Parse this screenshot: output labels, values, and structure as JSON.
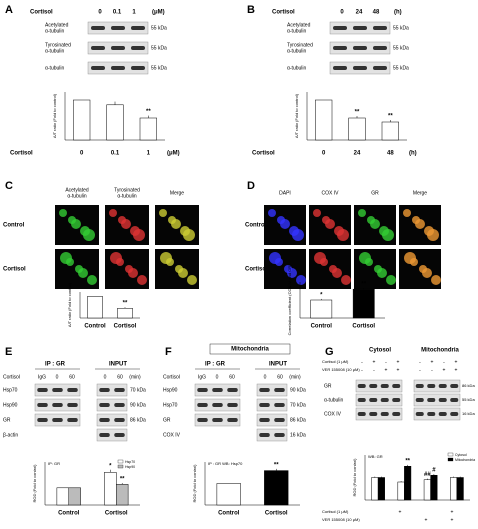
{
  "panels": {
    "A": {
      "letter": "A",
      "treatment": "Cortisol",
      "lanes": [
        "0",
        "0.1",
        "1"
      ],
      "unit": "(μM)",
      "blots": [
        {
          "label": [
            "Acetylated",
            "α-tubulin"
          ],
          "size": "55 kDa"
        },
        {
          "label": [
            "Tyrosinated",
            "α-tubulin"
          ],
          "size": "55 kDa"
        },
        {
          "label": [
            "α-tubulin"
          ],
          "size": "55 kDa"
        }
      ]
    },
    "B": {
      "letter": "B",
      "treatment": "Cortisol",
      "lanes": [
        "0",
        "24",
        "48"
      ],
      "unit": "(h)",
      "blots": [
        {
          "label": [
            "Acetylated",
            "α-tubulin"
          ],
          "size": "55 kDa"
        },
        {
          "label": [
            "Tyrosinated",
            "α-tubulin"
          ],
          "size": "55 kDa"
        },
        {
          "label": [
            "α-tubulin"
          ],
          "size": "55 kDa"
        }
      ]
    },
    "C": {
      "letter": "C",
      "columns": [
        [
          "Acetylated",
          "α-tubulin"
        ],
        [
          "Tyrosinated",
          "α-tubulin"
        ],
        [
          "Merge"
        ]
      ],
      "rows": [
        "Control",
        "Cortisol"
      ]
    },
    "D": {
      "letter": "D",
      "columns": [
        [
          "DAPI"
        ],
        [
          "COX IV"
        ],
        [
          "GR"
        ],
        [
          "Merge"
        ]
      ],
      "rows": [
        "Control",
        "Cortisol"
      ]
    },
    "E": {
      "letter": "E",
      "groups": [
        "IP : GR",
        "INPUT"
      ],
      "treatment": "Cortisol",
      "lanes_left": [
        "IgG",
        "0",
        "60"
      ],
      "lanes_right": [
        "0",
        "60",
        "(min)"
      ],
      "blots": [
        {
          "label": "Hsp70",
          "size": "70 kDa"
        },
        {
          "label": "Hsp90",
          "size": "90 kDa"
        },
        {
          "label": "GR",
          "size": "86 kDa"
        },
        {
          "label": "β-actin"
        }
      ]
    },
    "F": {
      "letter": "F",
      "header": "Mitochondria",
      "groups": [
        "IP : GR",
        "INPUT"
      ],
      "treatment": "Cortisol",
      "lanes_left": [
        "IgG",
        "0",
        "60"
      ],
      "lanes_right": [
        "0",
        "60",
        "(min)"
      ],
      "blots": [
        {
          "label": "Hsp90",
          "size": "90 kDa"
        },
        {
          "label": "Hsp70",
          "size": "70 kDa"
        },
        {
          "label": "GR",
          "size": "86 kDa"
        },
        {
          "label": "COX IV",
          "size": "16 kDa"
        }
      ]
    },
    "G": {
      "letter": "G",
      "groups": [
        "Cytosol",
        "Mitochondria"
      ],
      "conditions": [
        {
          "label": "Cortisol (1 μM)",
          "signs": [
            "-",
            "+",
            "-",
            "+",
            "-",
            "+",
            "-",
            "+"
          ]
        },
        {
          "label": "VER 155008 (10 μM)",
          "signs": [
            "-",
            "-",
            "+",
            "+",
            "-",
            "-",
            "+",
            "+"
          ]
        }
      ],
      "blots": [
        {
          "label": "GR",
          "size": "86 kDa"
        },
        {
          "label": "α-tubulin",
          "size": "55 kDa"
        },
        {
          "label": "COX IV",
          "size": "16 kDa"
        }
      ]
    }
  },
  "chart_data": [
    {
      "type": "bar",
      "ylabel": "A/T ratio (Fold to control)",
      "xlabel": "Cortisol",
      "unit": "(μM)",
      "categories": [
        "0",
        "0.1",
        "1"
      ],
      "values": [
        1,
        0.88,
        0.55
      ],
      "errors": [
        0,
        0.08,
        0.06
      ],
      "annotations": [
        null,
        null,
        "**"
      ],
      "color": "#ffffff",
      "ylim": [
        0,
        1.2
      ]
    },
    {
      "type": "bar",
      "ylabel": "A/T ratio (Fold to control)",
      "xlabel": "Cortisol",
      "unit": "(h)",
      "categories": [
        "0",
        "24",
        "48"
      ],
      "values": [
        1,
        0.55,
        0.45
      ],
      "errors": [
        0,
        0.05,
        0.05
      ],
      "annotations": [
        null,
        "**",
        "**"
      ],
      "color": "#ffffff",
      "ylim": [
        0,
        1.2
      ]
    },
    {
      "type": "bar",
      "ylabel": "A/T ratio (Fold to control)",
      "categories": [
        "Control",
        "Cortisol"
      ],
      "values": [
        1,
        0.45
      ],
      "errors": [
        0,
        0.05
      ],
      "annotations": [
        null,
        "**"
      ],
      "color": "#ffffff",
      "ylim": [
        0,
        1.2
      ]
    },
    {
      "type": "bar",
      "ylabel": "Correlation coefficient (COX IV and GR)",
      "categories": [
        "Control",
        "Cortisol"
      ],
      "values": [
        0.5,
        0.8
      ],
      "errors": [
        0.03,
        0.03
      ],
      "annotations": [
        "*",
        "**"
      ],
      "color": [
        "#ffffff",
        "#000000"
      ],
      "ylim": [
        0,
        1
      ]
    },
    {
      "type": "bar",
      "label": "IP: GR",
      "ylabel": "ROD (Fold to control)",
      "categories": [
        "Control",
        "Cortisol"
      ],
      "series": [
        {
          "name": "Hsp70",
          "color": "#ffffff",
          "values": [
            1,
            1.9
          ],
          "errors": [
            0,
            0.15
          ],
          "annotations": [
            null,
            "*"
          ]
        },
        {
          "name": "Hsp90",
          "color": "#bbbbbb",
          "values": [
            1,
            1.2
          ],
          "errors": [
            0,
            0.08
          ],
          "annotations": [
            null,
            "**"
          ]
        }
      ],
      "ylim": [
        0,
        2.5
      ]
    },
    {
      "type": "bar",
      "label": "IP : GR WB: Hsp70",
      "ylabel": "ROD (Fold to control)",
      "categories": [
        "Control",
        "Cortisol"
      ],
      "values": [
        1,
        1.6
      ],
      "errors": [
        0,
        0.08
      ],
      "annotations": [
        null,
        "**"
      ],
      "color": [
        "#ffffff",
        "#000000"
      ],
      "ylim": [
        0,
        2
      ]
    },
    {
      "type": "bar",
      "label": "WB: GR",
      "ylabel": "ROD (Fold to control)",
      "categories": [
        null,
        null,
        null,
        null
      ],
      "series": [
        {
          "name": "Cytosol",
          "color": "#ffffff",
          "values": [
            1,
            0.8,
            0.9,
            1
          ],
          "errors": [
            0.04,
            0.04,
            0.05,
            0.04
          ],
          "annotations": [
            null,
            null,
            "##",
            null
          ]
        },
        {
          "name": "Mitochondria",
          "color": "#000000",
          "values": [
            1,
            1.5,
            1.1,
            1
          ],
          "errors": [
            0.04,
            0.06,
            0.05,
            0.04
          ],
          "annotations": [
            null,
            "**",
            "#",
            null
          ]
        }
      ],
      "ylim": [
        0,
        2
      ]
    }
  ]
}
